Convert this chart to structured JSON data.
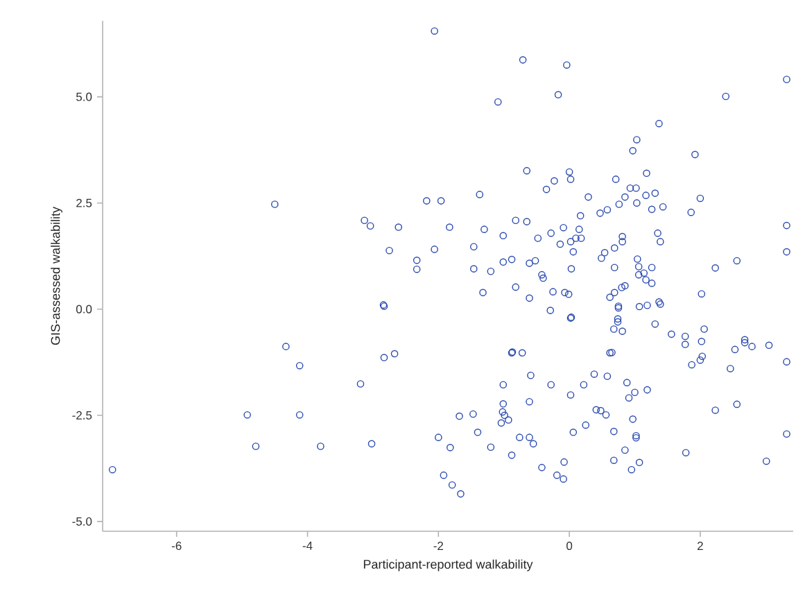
{
  "chart_data": {
    "type": "scatter",
    "xlabel": "Participant-reported walkability",
    "ylabel": "GIS-assessed walkability",
    "xlim": [
      -7.13,
      3.42
    ],
    "ylim": [
      -5.23,
      6.79
    ],
    "xticks": [
      -6,
      -4,
      -2,
      0,
      2
    ],
    "yticks": [
      {
        "value": -5,
        "label": "-5.0"
      },
      {
        "value": -2.5,
        "label": "-2.5"
      },
      {
        "value": 0,
        "label": "0.0"
      },
      {
        "value": 2.5,
        "label": "2.5"
      },
      {
        "value": 5,
        "label": "5.0"
      }
    ],
    "color": "#2b4bb0",
    "marker": "circle",
    "x": [
      -6.98,
      -4.92,
      -4.79,
      -4.33,
      -4.12,
      -4.12,
      -3.8,
      -3.19,
      -3.02,
      -2.84,
      -2.83,
      -2.83,
      -2.67,
      -2.33,
      -2.33,
      -4.5,
      -3.13,
      -3.04,
      -2.61,
      -2.75,
      -2.18,
      -2.06,
      -0.71,
      -0.04,
      -1.09,
      -0.17,
      -0.65,
      0.0,
      0.02,
      -0.23,
      -0.35,
      0.29,
      -1.37,
      -1.96,
      0.17,
      0.47,
      0.58,
      -0.82,
      -0.65,
      -1.83,
      -1.3,
      -1.01,
      -0.09,
      0.15,
      -0.28,
      -0.48,
      0.1,
      0.18,
      0.02,
      -0.14,
      -2.06,
      -1.46,
      0.06,
      -1.46,
      -1.2,
      -1.01,
      -0.88,
      -0.61,
      -0.52,
      -0.42,
      -0.4,
      0.03,
      0.49,
      0.54,
      3.32,
      2.39,
      1.37,
      1.03,
      0.97,
      1.92,
      0.71,
      1.18,
      0.93,
      1.02,
      1.31,
      1.17,
      0.85,
      0.76,
      1.03,
      1.26,
      1.43,
      2.0,
      1.86,
      1.35,
      1.39,
      0.81,
      0.81,
      0.69,
      1.04,
      0.69,
      1.06,
      1.26,
      1.14,
      1.06,
      2.23,
      2.56,
      3.32,
      3.32,
      -1.32,
      -0.82,
      -0.61,
      -0.25,
      -0.07,
      -0.01,
      0.62,
      -0.29,
      0.02,
      0.03,
      -0.88,
      -0.87,
      -0.72,
      0.62,
      0.38,
      0.58,
      -1.01,
      -0.59,
      -0.28,
      0.22,
      0.02,
      -1.01,
      -0.61,
      -1.68,
      -1.47,
      -1.02,
      -0.99,
      -0.93,
      -1.04,
      0.41,
      0.48,
      0.56,
      -1.4,
      -2.0,
      -1.82,
      -1.2,
      -0.76,
      -0.61,
      -0.55,
      0.06,
      0.25,
      -0.88,
      -1.92,
      -1.79,
      -1.66,
      -0.42,
      -0.19,
      -0.08,
      -0.09,
      1.17,
      1.26,
      0.69,
      0.8,
      0.85,
      0.75,
      0.75,
      1.07,
      1.19,
      1.37,
      1.39,
      2.02,
      0.74,
      0.74,
      0.68,
      0.81,
      1.31,
      1.56,
      1.77,
      1.77,
      2.06,
      2.02,
      2.03,
      2.0,
      1.87,
      0.65,
      0.88,
      0.91,
      1.0,
      1.19,
      2.46,
      2.53,
      2.68,
      2.68,
      2.79,
      3.05,
      3.32,
      0.97,
      0.68,
      1.02,
      1.02,
      2.23,
      2.56,
      3.32,
      0.85,
      0.68,
      0.95,
      1.07,
      1.78,
      3.01
    ],
    "values": [
      -3.78,
      -2.49,
      -3.23,
      -0.88,
      -1.33,
      -2.49,
      -3.23,
      -1.76,
      -3.17,
      0.1,
      0.07,
      -1.14,
      -1.05,
      0.94,
      1.15,
      2.47,
      2.09,
      1.96,
      1.93,
      1.38,
      2.55,
      6.55,
      5.87,
      5.75,
      4.88,
      5.05,
      3.26,
      3.23,
      3.06,
      3.02,
      2.82,
      2.64,
      2.7,
      2.55,
      2.2,
      2.26,
      2.34,
      2.09,
      2.06,
      1.93,
      1.88,
      1.73,
      1.92,
      1.88,
      1.79,
      1.67,
      1.67,
      1.67,
      1.59,
      1.53,
      1.41,
      1.47,
      1.35,
      0.95,
      0.89,
      1.11,
      1.17,
      1.08,
      1.14,
      0.81,
      0.73,
      0.95,
      1.2,
      1.33,
      5.41,
      5.01,
      4.37,
      3.99,
      3.73,
      3.64,
      3.06,
      3.2,
      2.85,
      2.85,
      2.73,
      2.68,
      2.64,
      2.47,
      2.5,
      2.35,
      2.41,
      2.61,
      2.28,
      1.79,
      1.59,
      1.71,
      1.59,
      1.44,
      1.18,
      0.98,
      1.0,
      0.98,
      0.85,
      0.81,
      0.97,
      1.14,
      1.97,
      1.35,
      0.39,
      0.52,
      0.26,
      0.41,
      0.39,
      0.35,
      0.28,
      -0.03,
      -0.21,
      -0.19,
      -1.03,
      -1.01,
      -1.03,
      -1.03,
      -1.53,
      -1.58,
      -1.78,
      -1.56,
      -1.78,
      -1.78,
      -2.02,
      -2.23,
      -2.18,
      -2.52,
      -2.47,
      -2.42,
      -2.5,
      -2.61,
      -2.68,
      -2.37,
      -2.39,
      -2.49,
      -2.9,
      -3.02,
      -3.26,
      -3.25,
      -3.02,
      -3.02,
      -3.17,
      -2.9,
      -2.73,
      -3.44,
      -3.91,
      -4.14,
      -4.35,
      -3.73,
      -3.91,
      -3.6,
      -4.0,
      0.69,
      0.61,
      0.39,
      0.51,
      0.55,
      0.07,
      0.03,
      0.06,
      0.09,
      0.17,
      0.12,
      0.36,
      -0.23,
      -0.3,
      -0.47,
      -0.52,
      -0.35,
      -0.59,
      -0.64,
      -0.83,
      -0.47,
      -0.76,
      -1.11,
      -1.2,
      -1.31,
      -1.02,
      -1.73,
      -2.09,
      -1.96,
      -1.9,
      -1.4,
      -0.95,
      -0.72,
      -0.79,
      -0.88,
      -0.85,
      -1.24,
      -2.59,
      -2.88,
      -2.98,
      -3.03,
      -2.38,
      -2.24,
      -2.94,
      -3.32,
      -3.56,
      -3.78,
      -3.61,
      -3.38,
      -3.58
    ]
  }
}
